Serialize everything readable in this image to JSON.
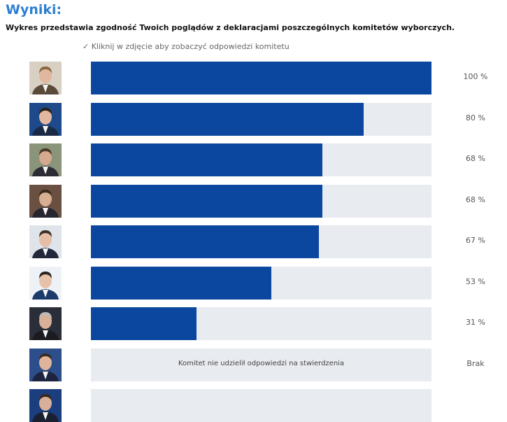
{
  "header": {
    "title": "Wyniki:",
    "subtitle": "Wykres przedstawia zgodność Twoich poglądów z deklaracjami poszczególnych komitetów wyborczych.",
    "hint": "✓ Kliknij w zdjęcie aby zobaczyć odpowiedzi komitetu"
  },
  "colors": {
    "bar_fill": "#0b479e",
    "bar_track": "#e8ebf0",
    "title": "#2d7ed2"
  },
  "chart_data": {
    "type": "bar",
    "orientation": "horizontal",
    "xlim": [
      0,
      100
    ],
    "values": [
      100,
      80,
      68,
      68,
      67,
      53,
      31,
      null
    ],
    "labels": [
      "100 %",
      "80 %",
      "68 %",
      "68 %",
      "67 %",
      "53 %",
      "31 %",
      "Brak"
    ],
    "empty_note": "Komitet nie udzielił odpowiedzi na stwierdzenia"
  }
}
